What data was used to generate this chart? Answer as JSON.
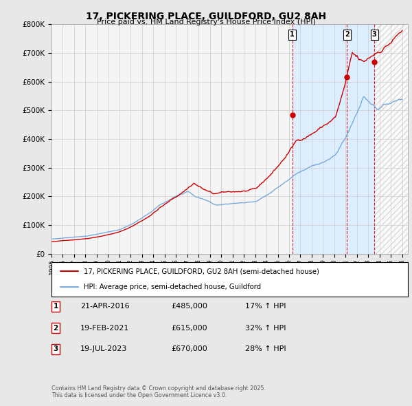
{
  "title": "17, PICKERING PLACE, GUILDFORD, GU2 8AH",
  "subtitle": "Price paid vs. HM Land Registry's House Price Index (HPI)",
  "ylim": [
    0,
    800000
  ],
  "yticks": [
    0,
    100000,
    200000,
    300000,
    400000,
    500000,
    600000,
    700000,
    800000
  ],
  "ytick_labels": [
    "£0",
    "£100K",
    "£200K",
    "£300K",
    "£400K",
    "£500K",
    "£600K",
    "£700K",
    "£800K"
  ],
  "xlim_start": 1995.0,
  "xlim_end": 2026.5,
  "sale_color": "#cc0000",
  "hpi_color": "#7aaadd",
  "dashed_color": "#cc0000",
  "highlight_color": "#ddeeff",
  "background_color": "#e8e8e8",
  "plot_bg_color": "#f5f5f5",
  "grid_color": "#cccccc",
  "hatch_color": "#cccccc",
  "sales": [
    {
      "date": 2016.29,
      "price": 485000,
      "label": "1"
    },
    {
      "date": 2021.12,
      "price": 615000,
      "label": "2"
    },
    {
      "date": 2023.54,
      "price": 670000,
      "label": "3"
    }
  ],
  "legend_entries": [
    "17, PICKERING PLACE, GUILDFORD, GU2 8AH (semi-detached house)",
    "HPI: Average price, semi-detached house, Guildford"
  ],
  "table_rows": [
    {
      "num": "1",
      "date": "21-APR-2016",
      "price": "£485,000",
      "note": "17% ↑ HPI"
    },
    {
      "num": "2",
      "date": "19-FEB-2021",
      "price": "£615,000",
      "note": "32% ↑ HPI"
    },
    {
      "num": "3",
      "date": "19-JUL-2023",
      "price": "£670,000",
      "note": "28% ↑ HPI"
    }
  ],
  "footer": "Contains HM Land Registry data © Crown copyright and database right 2025.\nThis data is licensed under the Open Government Licence v3.0."
}
